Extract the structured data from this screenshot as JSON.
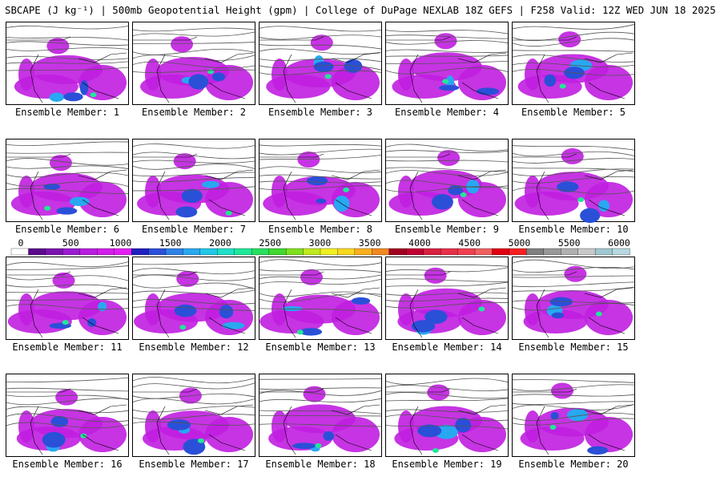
{
  "header": {
    "title": "SBCAPE (J kg⁻¹) | 500mb Geopotential Height (gpm) | College of DuPage NEXLAB 18Z GEFS | F258 Valid: 12Z WED JUN 18 2025"
  },
  "colorbar": {
    "ticks": [
      "0",
      "500",
      "1000",
      "1500",
      "2000",
      "2500",
      "3000",
      "3500",
      "4000",
      "4500",
      "5000",
      "5500",
      "6000"
    ],
    "colors": [
      "#ffffff",
      "#5b0a8c",
      "#7a12b0",
      "#9a1ad0",
      "#b81ee0",
      "#d21eea",
      "#e41ef2",
      "#2020c0",
      "#2a50d8",
      "#2c80e8",
      "#28a8f0",
      "#20c8e8",
      "#20e0c8",
      "#20e898",
      "#28e060",
      "#40d830",
      "#80e020",
      "#c0e820",
      "#f0f020",
      "#f8d820",
      "#f8b020",
      "#f08820",
      "#a00020",
      "#c00030",
      "#d82040",
      "#e83048",
      "#f04050",
      "#f06060",
      "#e00010",
      "#f82020",
      "#808080",
      "#989898",
      "#b0b0b0",
      "#c8c8c8",
      "#a0c8d0",
      "#b8d8e0"
    ]
  },
  "members": [
    {
      "label": "Ensemble Member: 1"
    },
    {
      "label": "Ensemble Member: 2"
    },
    {
      "label": "Ensemble Member: 3"
    },
    {
      "label": "Ensemble Member: 4"
    },
    {
      "label": "Ensemble Member: 5"
    },
    {
      "label": "Ensemble Member: 6"
    },
    {
      "label": "Ensemble Member: 7"
    },
    {
      "label": "Ensemble Member: 8"
    },
    {
      "label": "Ensemble Member: 9"
    },
    {
      "label": "Ensemble Member: 10"
    },
    {
      "label": "Ensemble Member: 11"
    },
    {
      "label": "Ensemble Member: 12"
    },
    {
      "label": "Ensemble Member: 13"
    },
    {
      "label": "Ensemble Member: 14"
    },
    {
      "label": "Ensemble Member: 15"
    },
    {
      "label": "Ensemble Member: 16"
    },
    {
      "label": "Ensemble Member: 17"
    },
    {
      "label": "Ensemble Member: 18"
    },
    {
      "label": "Ensemble Member: 19"
    },
    {
      "label": "Ensemble Member: 20"
    }
  ]
}
